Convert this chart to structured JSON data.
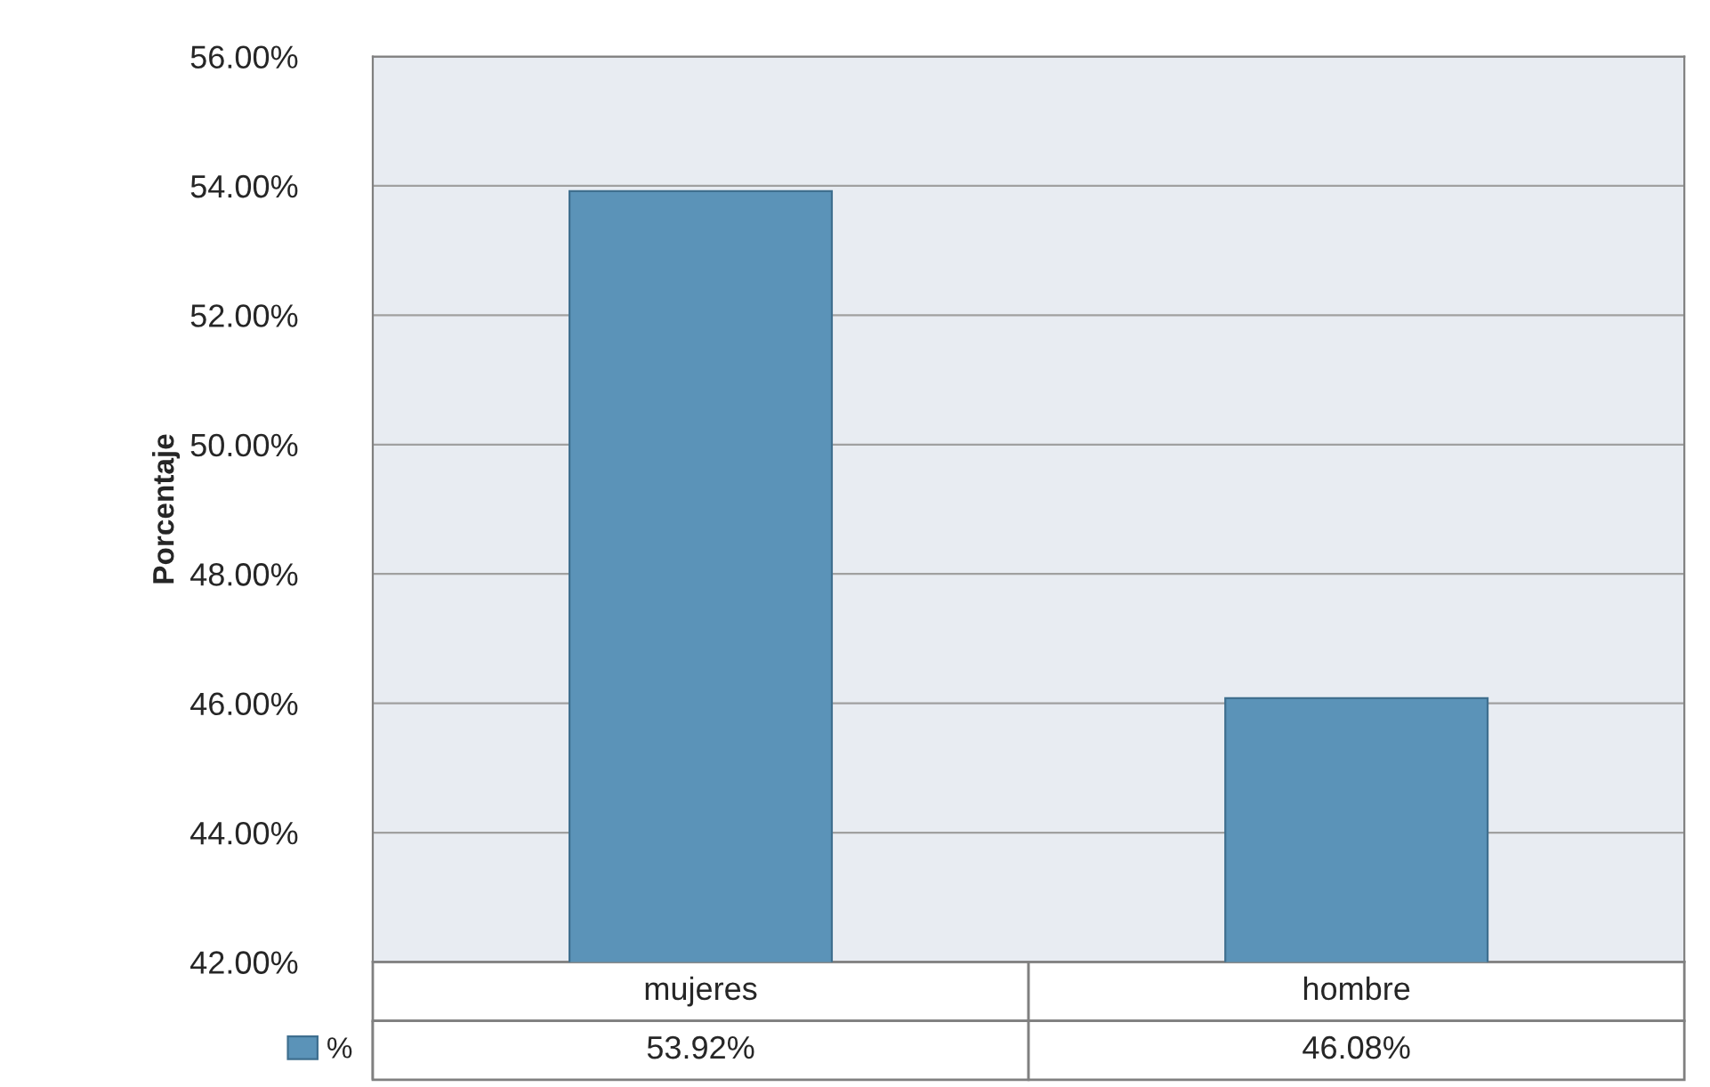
{
  "chart_data": {
    "type": "bar",
    "ylabel": "Porcentaje",
    "categories": [
      "mujeres",
      "hombre"
    ],
    "series": [
      {
        "name": "%",
        "color": "#5b93b8",
        "values": [
          53.92,
          46.08
        ],
        "value_labels": [
          "53.92%",
          "46.08%"
        ]
      }
    ],
    "ylim": [
      42,
      56
    ],
    "yticks": [
      {
        "value": 42,
        "label": "42.00%"
      },
      {
        "value": 44,
        "label": "44.00%"
      },
      {
        "value": 46,
        "label": "46.00%"
      },
      {
        "value": 48,
        "label": "48.00%"
      },
      {
        "value": 50,
        "label": "50.00%"
      },
      {
        "value": 52,
        "label": "52.00%"
      },
      {
        "value": 54,
        "label": "54.00%"
      },
      {
        "value": 56,
        "label": "56.00%"
      }
    ],
    "grid": "y",
    "legend": "bottom left"
  }
}
